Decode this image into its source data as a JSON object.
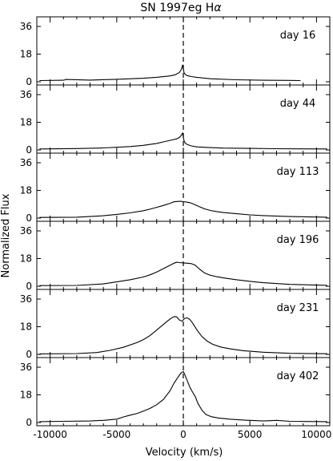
{
  "chart_data": {
    "type": "line",
    "title": "SN 1997eg H",
    "title_symbol": "α",
    "xlabel": "Velocity (km/s)",
    "ylabel": "Normalized Flux",
    "xlim": [
      -11000,
      11000
    ],
    "ylim": [
      0,
      36
    ],
    "x_ticks": [
      -10000,
      -5000,
      0,
      5000,
      10000
    ],
    "y_ticks": [
      0,
      18,
      36
    ],
    "reference_line_x": 0,
    "series": [
      {
        "name": "day 16",
        "x": [
          -10800,
          -9000,
          -8800,
          -7000,
          -5000,
          -3000,
          -2000,
          -1000,
          -600,
          -300,
          -150,
          -60,
          0,
          60,
          150,
          300,
          600,
          1000,
          2000,
          4000,
          6000,
          8000,
          8800
        ],
        "y": [
          0.8,
          1.0,
          1.5,
          1.1,
          1.6,
          2.3,
          2.9,
          3.8,
          4.6,
          6.0,
          8.0,
          10.6,
          8.5,
          5.8,
          4.8,
          4.0,
          3.4,
          2.9,
          2.0,
          1.3,
          1.0,
          0.9,
          0.8
        ]
      },
      {
        "name": "day 44",
        "x": [
          -10800,
          -8000,
          -6000,
          -4000,
          -3000,
          -2000,
          -1500,
          -1000,
          -700,
          -500,
          -300,
          -150,
          -60,
          0,
          60,
          150,
          300,
          600,
          1000,
          2000,
          3000,
          5000,
          7000,
          9000,
          10800
        ],
        "y": [
          0.6,
          0.9,
          1.3,
          2.2,
          3.0,
          4.2,
          5.2,
          6.2,
          6.8,
          7.2,
          8.1,
          9.5,
          11.0,
          8.4,
          5.8,
          4.4,
          3.5,
          2.6,
          2.0,
          1.5,
          1.2,
          1.0,
          0.8,
          0.7,
          0.6
        ]
      },
      {
        "name": "day 113",
        "x": [
          -10800,
          -8000,
          -6000,
          -5000,
          -4000,
          -3000,
          -2500,
          -2000,
          -1500,
          -1000,
          -700,
          -500,
          -200,
          0,
          200,
          500,
          800,
          1200,
          1600,
          2000,
          2500,
          3000,
          4000,
          5000,
          6000,
          8000,
          10800
        ],
        "y": [
          0.4,
          0.6,
          1.5,
          2.4,
          3.4,
          4.8,
          5.8,
          7.0,
          8.2,
          9.6,
          10.6,
          10.8,
          10.9,
          10.7,
          10.5,
          10.0,
          9.0,
          7.4,
          6.0,
          5.0,
          4.2,
          3.6,
          2.8,
          2.1,
          1.6,
          1.0,
          0.6
        ]
      },
      {
        "name": "day 196",
        "x": [
          -10800,
          -8000,
          -6000,
          -5000,
          -4000,
          -3000,
          -2500,
          -2000,
          -1500,
          -1000,
          -700,
          -500,
          -300,
          0,
          300,
          600,
          900,
          1200,
          1600,
          2000,
          2500,
          3000,
          4000,
          5000,
          6000,
          8000,
          10800
        ],
        "y": [
          0.4,
          0.5,
          1.5,
          2.8,
          4.2,
          6.0,
          7.4,
          9.2,
          11.4,
          13.6,
          15.0,
          15.6,
          15.4,
          15.2,
          15.0,
          14.7,
          13.6,
          11.2,
          8.6,
          7.2,
          6.2,
          5.4,
          4.2,
          3.2,
          2.3,
          1.2,
          0.6
        ]
      },
      {
        "name": "day 231",
        "x": [
          -10800,
          -8000,
          -6500,
          -5500,
          -4500,
          -3500,
          -3000,
          -2500,
          -2000,
          -1500,
          -1200,
          -900,
          -700,
          -500,
          -300,
          -100,
          100,
          300,
          500,
          700,
          900,
          1100,
          1400,
          1800,
          2200,
          2800,
          3500,
          4500,
          6000,
          8000,
          10800
        ],
        "y": [
          0.3,
          0.5,
          1.2,
          2.6,
          4.6,
          7.6,
          9.6,
          12.2,
          15.8,
          19.4,
          21.6,
          23.6,
          24.6,
          24.4,
          22.4,
          21.6,
          23.4,
          23.8,
          22.6,
          20.4,
          17.6,
          15.0,
          11.6,
          8.6,
          6.6,
          4.8,
          3.6,
          2.4,
          1.4,
          0.7,
          0.4
        ]
      },
      {
        "name": "day 402",
        "x": [
          -10800,
          -9000,
          -7000,
          -6000,
          -5000,
          -4500,
          -4000,
          -3500,
          -3000,
          -2500,
          -2000,
          -1500,
          -1000,
          -700,
          -400,
          -200,
          0,
          100,
          300,
          500,
          700,
          900,
          1100,
          1400,
          1700,
          2100,
          2600,
          3500,
          4500,
          6000,
          7000,
          8000,
          10800
        ],
        "y": [
          0.6,
          0.8,
          1.0,
          1.4,
          2.2,
          3.6,
          4.8,
          5.8,
          7.4,
          9.2,
          11.6,
          15.0,
          20.6,
          25.6,
          29.4,
          32.0,
          33.2,
          31.4,
          27.2,
          22.8,
          19.8,
          16.8,
          12.4,
          8.0,
          5.2,
          3.8,
          3.0,
          2.2,
          1.6,
          1.0,
          1.4,
          0.8,
          0.6
        ]
      }
    ]
  }
}
